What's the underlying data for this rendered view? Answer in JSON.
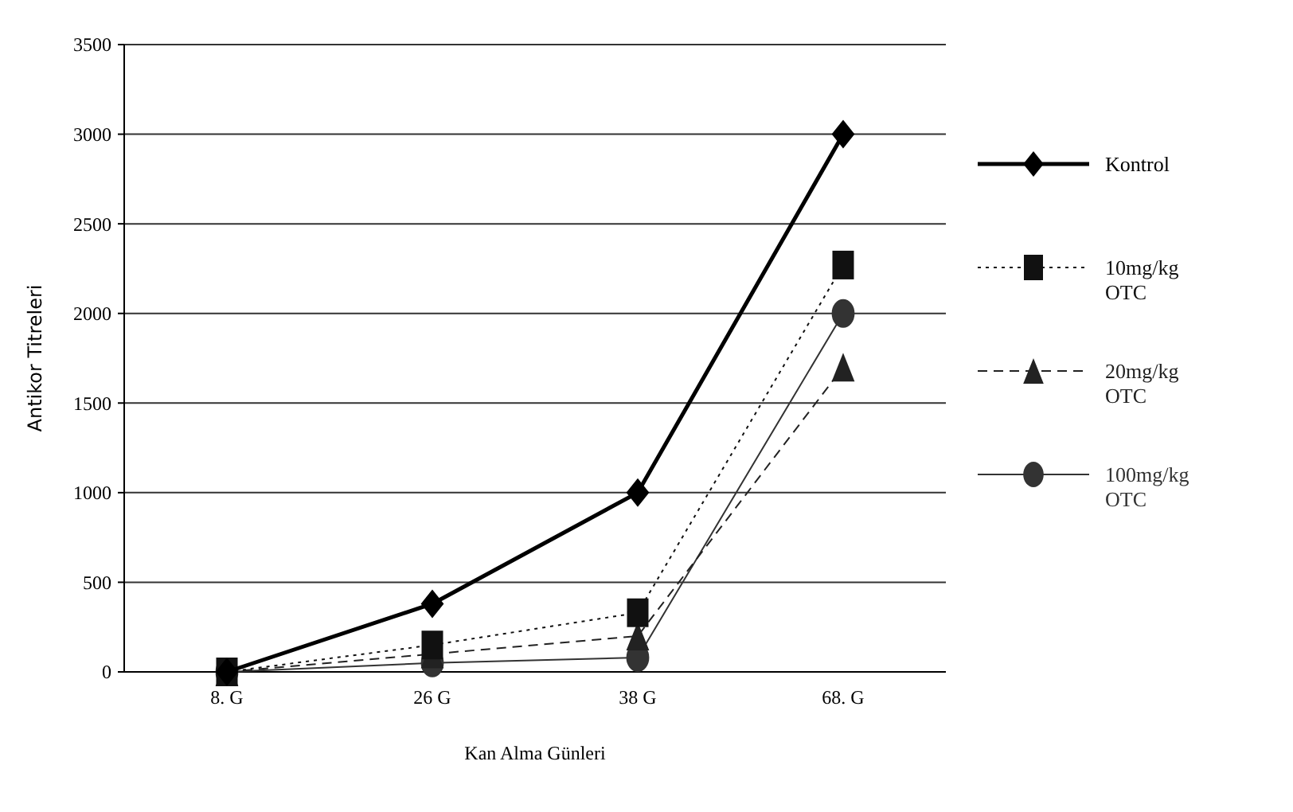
{
  "chart_data": {
    "type": "line",
    "xlabel": "Kan Alma Günleri",
    "ylabel": "Antikor Titreleri",
    "categories": [
      "8. G",
      "26 G",
      "38 G",
      "68. G"
    ],
    "ylim": [
      0,
      3500
    ],
    "yticks": [
      0,
      500,
      1000,
      1500,
      2000,
      2500,
      3000,
      3500
    ],
    "grid": "y",
    "legend": "right",
    "series": [
      {
        "name": "Kontrol",
        "color": "#000000",
        "marker": "diamond",
        "line_style": "solid",
        "values": [
          0,
          380,
          1000,
          3000
        ]
      },
      {
        "name": "10mg/kg OTC",
        "color": "#111111",
        "marker": "square",
        "line_style": "dotted",
        "values": [
          0,
          150,
          330,
          2270
        ]
      },
      {
        "name": "20mg/kg OTC",
        "color": "#222222",
        "marker": "triangle",
        "line_style": "dashed",
        "values": [
          0,
          100,
          200,
          1700
        ]
      },
      {
        "name": "100mg/kg OTC",
        "color": "#333333",
        "marker": "circle",
        "line_style": "solid",
        "values": [
          0,
          50,
          80,
          2000
        ]
      }
    ]
  }
}
